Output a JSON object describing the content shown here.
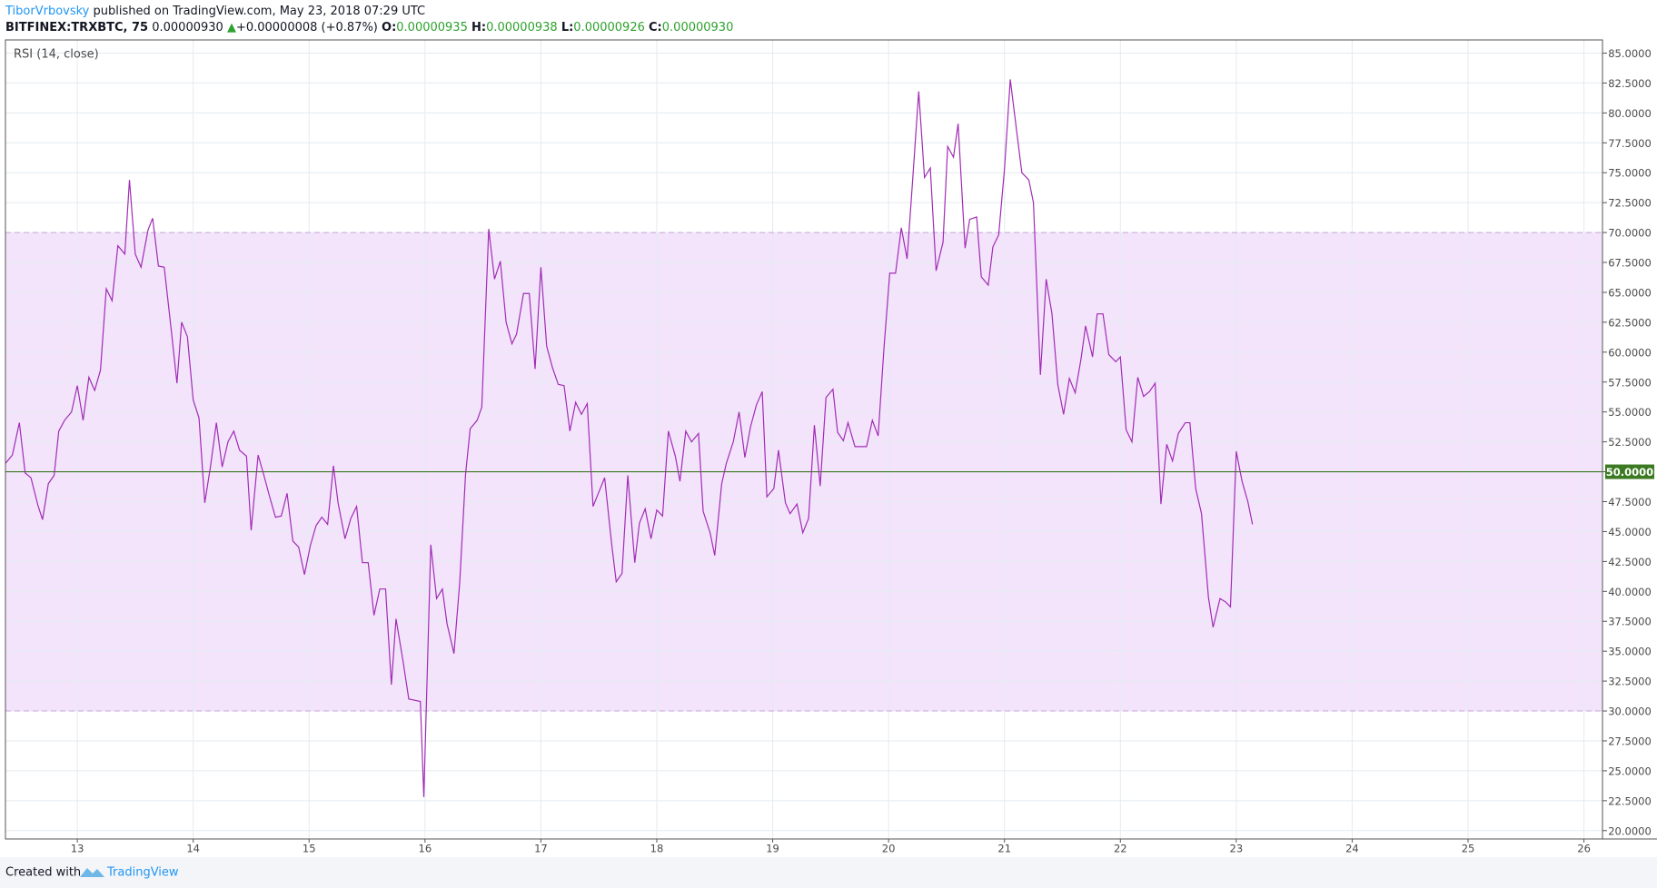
{
  "header": {
    "author": "TiborVrbovsky",
    "published": "published on TradingView.com, May 23, 2018 07:29 UTC",
    "symbol": "BITFINEX:TRXBTC, 75",
    "last": "0.00000930",
    "arrow": "▲",
    "change": "+0.00000008 (+0.87%)",
    "open_label": "O:",
    "open": "0.00000935",
    "high_label": "H:",
    "high": "0.00000938",
    "low_label": "L:",
    "low": "0.00000926",
    "close_label": "C:",
    "close": "0.00000930"
  },
  "footer": {
    "created": "Created with",
    "brand": "TradingView"
  },
  "chart_data": {
    "type": "line",
    "x": [
      12.38,
      12.44,
      12.5,
      12.55,
      12.6,
      12.66,
      12.7,
      12.75,
      12.8,
      12.84,
      12.89,
      12.95,
      13.0,
      13.05,
      13.1,
      13.15,
      13.2,
      13.25,
      13.3,
      13.35,
      13.41,
      13.45,
      13.5,
      13.55,
      13.61,
      13.65,
      13.7,
      13.75,
      13.81,
      13.86,
      13.9,
      13.95,
      14.0,
      14.05,
      14.1,
      14.15,
      14.2,
      14.25,
      14.3,
      14.35,
      14.4,
      14.46,
      14.5,
      14.56,
      14.61,
      14.66,
      14.71,
      14.76,
      14.81,
      14.86,
      14.91,
      14.96,
      15.01,
      15.06,
      15.11,
      15.16,
      15.21,
      15.25,
      15.31,
      15.36,
      15.41,
      15.46,
      15.51,
      15.56,
      15.61,
      15.66,
      15.71,
      15.75,
      15.81,
      15.86,
      15.91,
      15.96,
      15.99,
      16.05,
      16.1,
      16.15,
      16.19,
      16.25,
      16.3,
      16.35,
      16.39,
      16.45,
      16.49,
      16.55,
      16.6,
      16.65,
      16.7,
      16.75,
      16.79,
      16.85,
      16.9,
      16.95,
      17.0,
      17.05,
      17.1,
      17.15,
      17.2,
      17.25,
      17.3,
      17.35,
      17.4,
      17.45,
      17.5,
      17.55,
      17.61,
      17.65,
      17.7,
      17.75,
      17.81,
      17.85,
      17.9,
      17.95,
      18.0,
      18.05,
      18.1,
      18.16,
      18.2,
      18.25,
      18.3,
      18.36,
      18.4,
      18.46,
      18.5,
      18.56,
      18.6,
      18.66,
      18.71,
      18.76,
      18.81,
      18.86,
      18.91,
      18.95,
      19.01,
      19.05,
      19.11,
      19.15,
      19.21,
      19.26,
      19.31,
      19.36,
      19.41,
      19.46,
      19.52,
      19.56,
      19.61,
      19.65,
      19.71,
      19.76,
      19.81,
      19.86,
      19.91,
      19.96,
      20.01,
      20.06,
      20.11,
      20.16,
      20.21,
      20.26,
      20.31,
      20.36,
      20.41,
      20.47,
      20.51,
      20.56,
      20.6,
      20.66,
      20.7,
      20.76,
      20.8,
      20.86,
      20.9,
      20.95,
      21.0,
      21.05,
      21.11,
      21.15,
      21.21,
      21.25,
      21.31,
      21.36,
      21.41,
      21.46,
      21.51,
      21.56,
      21.61,
      21.66,
      21.7,
      21.76,
      21.8,
      21.85,
      21.9,
      21.96,
      22.0,
      22.05,
      22.1,
      22.15,
      22.2,
      22.25,
      22.3,
      22.35,
      22.4,
      22.45,
      22.5,
      22.56,
      22.6,
      22.65,
      22.7,
      22.76,
      22.8,
      22.86,
      22.91,
      22.95,
      23.0,
      23.05,
      23.1,
      23.14
    ],
    "series": [
      {
        "name": "RSI (14, close)",
        "color": "#a12cb4",
        "values": [
          50.7,
          51.4,
          54.1,
          49.9,
          49.5,
          47.2,
          46.0,
          49.0,
          49.7,
          53.4,
          54.3,
          55.0,
          57.2,
          54.3,
          57.9,
          56.8,
          58.5,
          65.3,
          64.3,
          68.9,
          68.2,
          74.4,
          68.2,
          67.1,
          70.2,
          71.2,
          67.2,
          67.1,
          61.9,
          57.4,
          62.5,
          61.3,
          56.0,
          54.5,
          47.4,
          50.5,
          54.1,
          50.4,
          52.5,
          53.4,
          51.8,
          51.3,
          45.1,
          51.4,
          49.7,
          47.9,
          46.2,
          46.3,
          48.2,
          44.2,
          43.7,
          41.4,
          43.8,
          45.5,
          46.2,
          45.6,
          50.5,
          47.4,
          44.4,
          46.1,
          47.1,
          42.4,
          42.4,
          38.0,
          40.2,
          40.2,
          32.2,
          37.7,
          34.2,
          31.0,
          30.9,
          30.8,
          22.8,
          43.9,
          39.4,
          40.2,
          37.3,
          34.8,
          40.8,
          49.8,
          53.6,
          54.3,
          55.4,
          70.3,
          66.1,
          67.6,
          62.5,
          60.7,
          61.5,
          64.9,
          64.9,
          58.6,
          67.1,
          60.5,
          58.7,
          57.3,
          57.2,
          53.4,
          55.8,
          54.8,
          55.7,
          47.1,
          48.3,
          49.5,
          44.0,
          40.8,
          41.5,
          49.7,
          42.4,
          45.7,
          46.9,
          44.4,
          46.8,
          46.3,
          53.4,
          51.3,
          49.2,
          53.4,
          52.5,
          53.2,
          46.7,
          44.9,
          43.0,
          49.0,
          50.7,
          52.5,
          55.0,
          51.2,
          53.8,
          55.6,
          56.7,
          47.9,
          48.6,
          51.8,
          47.4,
          46.5,
          47.3,
          44.9,
          46.1,
          53.9,
          48.8,
          56.2,
          56.9,
          53.3,
          52.6,
          54.1,
          52.1,
          52.1,
          52.1,
          54.3,
          53.0,
          60.3,
          66.6,
          66.6,
          70.4,
          67.8,
          74.7,
          81.8,
          74.6,
          75.4,
          66.8,
          69.2,
          77.2,
          76.3,
          79.1,
          68.7,
          71.1,
          71.3,
          66.3,
          65.6,
          68.8,
          69.8,
          75.3,
          82.8,
          78.1,
          75.0,
          74.4,
          72.5,
          58.1,
          66.1,
          63.2,
          57.3,
          54.8,
          57.8,
          56.6,
          59.4,
          62.2,
          59.6,
          63.2,
          63.2,
          59.8,
          59.2,
          59.6,
          53.5,
          52.5,
          57.9,
          56.3,
          56.7,
          57.4,
          47.3,
          52.3,
          50.9,
          53.2,
          54.1,
          54.1,
          48.6,
          46.5,
          39.5,
          37.0,
          39.4,
          39.1,
          38.7,
          51.7,
          49.2,
          47.5,
          45.6
        ]
      }
    ],
    "xlim": [
      12.38,
      26.16
    ],
    "xticks": [
      13,
      14,
      15,
      16,
      17,
      18,
      19,
      20,
      21,
      22,
      23,
      24,
      25,
      26
    ],
    "ylim": [
      19.3,
      86.1
    ],
    "yticks": [
      {
        "value": 20,
        "label": "20.0000"
      },
      {
        "value": 22.5,
        "label": "22.5000"
      },
      {
        "value": 25,
        "label": "25.0000"
      },
      {
        "value": 27.5,
        "label": "27.5000"
      },
      {
        "value": 30,
        "label": "30.0000"
      },
      {
        "value": 32.5,
        "label": "32.5000"
      },
      {
        "value": 35,
        "label": "35.0000"
      },
      {
        "value": 37.5,
        "label": "37.5000"
      },
      {
        "value": 40,
        "label": "40.0000"
      },
      {
        "value": 42.5,
        "label": "42.5000"
      },
      {
        "value": 45,
        "label": "45.0000"
      },
      {
        "value": 47.5,
        "label": "47.5000"
      },
      {
        "value": 50,
        "label": "50.0000"
      },
      {
        "value": 52.5,
        "label": "52.5000"
      },
      {
        "value": 55,
        "label": "55.0000"
      },
      {
        "value": 57.5,
        "label": "57.5000"
      },
      {
        "value": 60,
        "label": "60.0000"
      },
      {
        "value": 62.5,
        "label": "62.5000"
      },
      {
        "value": 65,
        "label": "65.0000"
      },
      {
        "value": 67.5,
        "label": "67.5000"
      },
      {
        "value": 70,
        "label": "70.0000"
      },
      {
        "value": 72.5,
        "label": "72.5000"
      },
      {
        "value": 75,
        "label": "75.0000"
      },
      {
        "value": 77.5,
        "label": "77.5000"
      },
      {
        "value": 80,
        "label": "80.0000"
      },
      {
        "value": 82.5,
        "label": "82.5000"
      },
      {
        "value": 85,
        "label": "85.0000"
      }
    ],
    "band": [
      30,
      70
    ],
    "band_color": "#f3e4fc",
    "midline": 50,
    "midline_color": "#3b7a22",
    "grid": true
  }
}
